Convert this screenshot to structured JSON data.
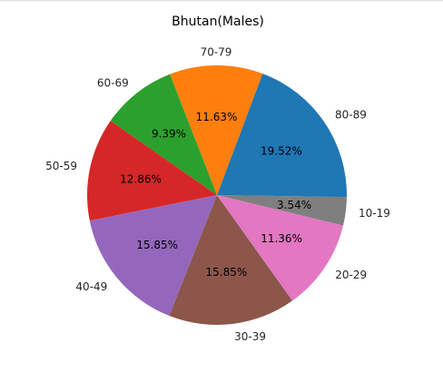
{
  "chart_data": {
    "type": "pie",
    "title": "Bhutan(Males)",
    "slices": [
      {
        "label": "10-19",
        "value": 3.54,
        "pct_label": "3.54%",
        "color": "#7f7f7f"
      },
      {
        "label": "80-89",
        "value": 19.52,
        "pct_label": "19.52%",
        "color": "#1f77b4"
      },
      {
        "label": "70-79",
        "value": 11.63,
        "pct_label": "11.63%",
        "color": "#ff7f0e"
      },
      {
        "label": "60-69",
        "value": 9.39,
        "pct_label": "9.39%",
        "color": "#2ca02c"
      },
      {
        "label": "50-59",
        "value": 12.86,
        "pct_label": "12.86%",
        "color": "#d62728"
      },
      {
        "label": "40-49",
        "value": 15.85,
        "pct_label": "15.85%",
        "color": "#9467bd"
      },
      {
        "label": "30-39",
        "value": 15.85,
        "pct_label": "15.85%",
        "color": "#8c564b"
      },
      {
        "label": "20-29",
        "value": 11.36,
        "pct_label": "11.36%",
        "color": "#e377c2"
      }
    ]
  }
}
